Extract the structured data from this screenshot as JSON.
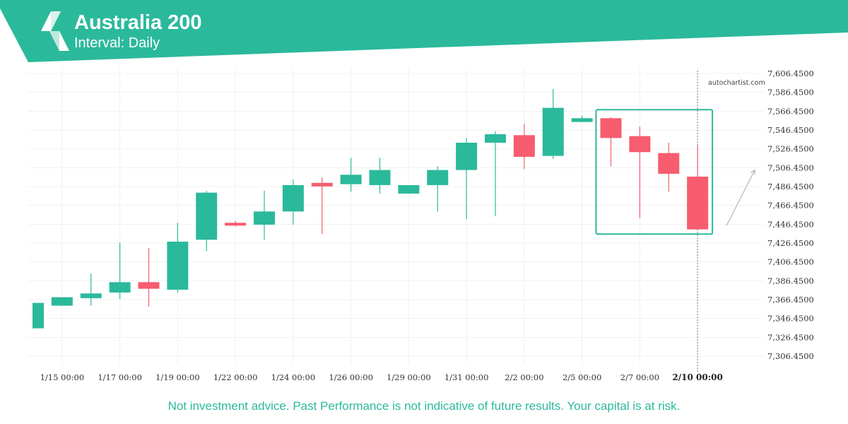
{
  "header": {
    "title": "Australia 200",
    "subtitle": "Interval: Daily"
  },
  "watermark": "autochartist.com",
  "disclaimer": "Not investment advice. Past Performance is not indicative of future results. Your capital is at risk.",
  "colors": {
    "brand": "#2bb99b",
    "bullish": "#2bb99b",
    "bearish": "#f75c6f",
    "highlight_box": "#2bb99b"
  },
  "icons": {
    "logo": "autochartist-logo-icon"
  },
  "chart_data": {
    "type": "candlestick",
    "title": "Australia 200",
    "subtitle": "Interval: Daily",
    "ylim": [
      7290,
      7610
    ],
    "y_ticks": [
      "7,606.4500",
      "7,586.4500",
      "7,566.4500",
      "7,546.4500",
      "7,526.4500",
      "7,506.4500",
      "7,486.4500",
      "7,466.4500",
      "7,446.4500",
      "7,426.4500",
      "7,406.4500",
      "7,386.4500",
      "7,366.4500",
      "7,346.4500",
      "7,326.4500",
      "7,306.4500"
    ],
    "x_tick_labels": [
      {
        "label": "1/15 00:00",
        "index": 1
      },
      {
        "label": "1/17 00:00",
        "index": 3
      },
      {
        "label": "1/19 00:00",
        "index": 5
      },
      {
        "label": "1/22 00:00",
        "index": 7
      },
      {
        "label": "1/24 00:00",
        "index": 9
      },
      {
        "label": "1/26 00:00",
        "index": 11
      },
      {
        "label": "1/29 00:00",
        "index": 13
      },
      {
        "label": "1/31 00:00",
        "index": 15
      },
      {
        "label": "2/2 00:00",
        "index": 17
      },
      {
        "label": "2/5 00:00",
        "index": 19
      },
      {
        "label": "2/7 00:00",
        "index": 21
      },
      {
        "label": "2/10 00:00",
        "index": 23
      }
    ],
    "current_time_label": "2/10 00:00",
    "candles": [
      {
        "o": 7336,
        "h": 7363,
        "l": 7336,
        "c": 7363
      },
      {
        "o": 7360,
        "h": 7369,
        "l": 7360,
        "c": 7369
      },
      {
        "o": 7368,
        "h": 7394,
        "l": 7360,
        "c": 7373
      },
      {
        "o": 7374,
        "h": 7427,
        "l": 7367,
        "c": 7385
      },
      {
        "o": 7385,
        "h": 7421,
        "l": 7359,
        "c": 7378
      },
      {
        "o": 7377,
        "h": 7448,
        "l": 7374,
        "c": 7428
      },
      {
        "o": 7430,
        "h": 7482,
        "l": 7418,
        "c": 7480
      },
      {
        "o": 7448,
        "h": 7450,
        "l": 7444,
        "c": 7445
      },
      {
        "o": 7446,
        "h": 7482,
        "l": 7430,
        "c": 7460
      },
      {
        "o": 7460,
        "h": 7494,
        "l": 7446,
        "c": 7488
      },
      {
        "o": 7489,
        "h": 7496,
        "l": 7436,
        "c": 7488
      },
      {
        "o": 7489,
        "h": 7517,
        "l": 7481,
        "c": 7499
      },
      {
        "o": 7488,
        "h": 7517,
        "l": 7479,
        "c": 7504
      },
      {
        "o": 7479,
        "h": 7488,
        "l": 7479,
        "c": 7488
      },
      {
        "o": 7488,
        "h": 7508,
        "l": 7460,
        "c": 7504
      },
      {
        "o": 7504,
        "h": 7538,
        "l": 7452,
        "c": 7533
      },
      {
        "o": 7533,
        "h": 7545,
        "l": 7455,
        "c": 7542
      },
      {
        "o": 7541,
        "h": 7553,
        "l": 7505,
        "c": 7518
      },
      {
        "o": 7519,
        "h": 7590,
        "l": 7516,
        "c": 7570
      },
      {
        "o": 7555,
        "h": 7562,
        "l": 7555,
        "c": 7559
      },
      {
        "o": 7559,
        "h": 7560,
        "l": 7508,
        "c": 7538
      },
      {
        "o": 7540,
        "h": 7550,
        "l": 7453,
        "c": 7523
      },
      {
        "o": 7522,
        "h": 7533,
        "l": 7481,
        "c": 7500
      },
      {
        "o": 7497,
        "h": 7530,
        "l": 7442,
        "c": 7441
      }
    ],
    "pattern": {
      "first_index": 20,
      "last_index": 23,
      "high": 7568,
      "low": 7436,
      "projection_from": 7445,
      "projection_to": 7504
    }
  }
}
